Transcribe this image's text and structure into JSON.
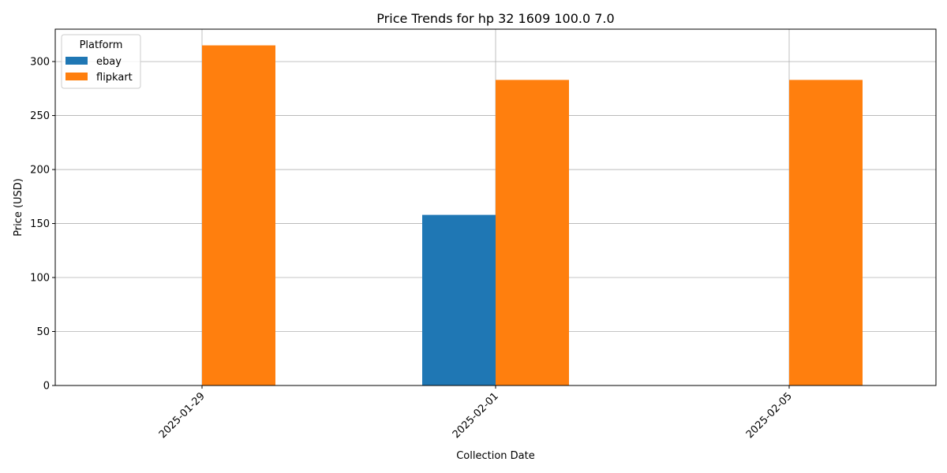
{
  "chart_data": {
    "type": "bar",
    "title": "Price Trends for hp 32 1609 100.0 7.0",
    "xlabel": "Collection Date",
    "ylabel": "Price (USD)",
    "categories": [
      "2025-01-29",
      "2025-02-01",
      "2025-02-05"
    ],
    "series": [
      {
        "name": "ebay",
        "color": "#1f77b4",
        "values": [
          null,
          158,
          null
        ]
      },
      {
        "name": "flipkart",
        "color": "#ff7f0e",
        "values": [
          315,
          283,
          283
        ]
      }
    ],
    "ylim": [
      0,
      330
    ],
    "yticks": [
      0,
      50,
      100,
      150,
      200,
      250,
      300
    ],
    "grid": true,
    "legend": {
      "title": "Platform",
      "placement": "top-left"
    }
  }
}
